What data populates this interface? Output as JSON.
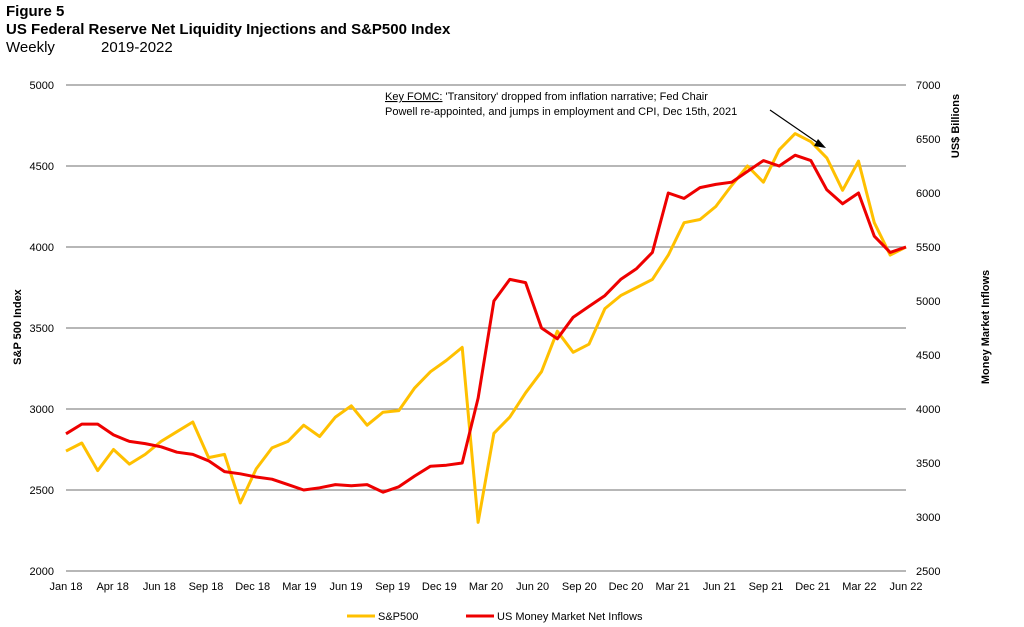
{
  "header": {
    "figure_label": "Figure 5",
    "title": "US Federal Reserve Net Liquidity Injections and S&P500 Index",
    "frequency": "Weekly",
    "period": "2019-2022"
  },
  "chart_data": {
    "type": "line",
    "y_left": {
      "label": "S&P 500 Index",
      "range": [
        2000,
        5000
      ],
      "ticks": [
        2000,
        2500,
        3000,
        3500,
        4000,
        4500,
        5000
      ]
    },
    "y_right": {
      "label": "Money Market Inflows",
      "unit_label": "US$ Billions",
      "range": [
        2500,
        7000
      ],
      "ticks": [
        2500,
        3000,
        3500,
        4000,
        4500,
        5000,
        5500,
        6000,
        6500,
        7000
      ]
    },
    "x_ticks": [
      "Jan 18",
      "Apr 18",
      "Jun 18",
      "Sep 18",
      "Dec 18",
      "Mar 19",
      "Jun 19",
      "Sep 19",
      "Dec 19",
      "Mar 20",
      "Jun 20",
      "Sep 20",
      "Dec 20",
      "Mar 21",
      "Jun 21",
      "Sep 21",
      "Dec 21",
      "Mar 22",
      "Jun 22"
    ],
    "grid": "horizontal",
    "legend_position": "bottom",
    "annotation": {
      "prefix": "Key FOMC:",
      "line1": " 'Transitory' dropped from inflation narrative; Fed Chair",
      "line2": "Powell re-appointed, and jumps in employment and CPI, Dec 15th, 2021"
    },
    "series": [
      {
        "name": "S&P500",
        "color": "#FFC000",
        "axis": "left",
        "x": [
          "Jan 18",
          "Feb 18",
          "Mar 18",
          "Apr 18",
          "May 18",
          "Jun 18",
          "Jul 18",
          "Aug 18",
          "Sep 18",
          "Oct 18",
          "Nov 18",
          "Dec 18",
          "Jan 19",
          "Feb 19",
          "Mar 19",
          "Apr 19",
          "May 19",
          "Jun 19",
          "Jul 19",
          "Aug 19",
          "Sep 19",
          "Oct 19",
          "Nov 19",
          "Dec 19",
          "Jan 20",
          "Feb 20",
          "Mar 20",
          "Apr 20",
          "May 20",
          "Jun 20",
          "Jul 20",
          "Aug 20",
          "Sep 20",
          "Oct 20",
          "Nov 20",
          "Dec 20",
          "Jan 21",
          "Feb 21",
          "Mar 21",
          "Apr 21",
          "May 21",
          "Jun 21",
          "Jul 21",
          "Aug 21",
          "Sep 21",
          "Oct 21",
          "Nov 21",
          "Dec 21",
          "Jan 22",
          "Feb 22",
          "Mar 22",
          "Apr 22",
          "May 22",
          "Jun 22"
        ],
        "values": [
          2740,
          2790,
          2620,
          2750,
          2660,
          2720,
          2800,
          2860,
          2920,
          2700,
          2720,
          2420,
          2630,
          2760,
          2800,
          2900,
          2830,
          2950,
          3020,
          2900,
          2980,
          2990,
          3130,
          3230,
          3300,
          3380,
          2300,
          2850,
          2950,
          3100,
          3230,
          3480,
          3350,
          3400,
          3620,
          3700,
          3750,
          3800,
          3950,
          4150,
          4170,
          4250,
          4380,
          4500,
          4400,
          4600,
          4700,
          4650,
          4550,
          4350,
          4530,
          4150,
          3950,
          4000
        ]
      },
      {
        "name": "US Money Market Net Inflows",
        "color": "#EE0000",
        "axis": "right",
        "x": [
          "Jan 18",
          "Feb 18",
          "Mar 18",
          "Apr 18",
          "May 18",
          "Jun 18",
          "Jul 18",
          "Aug 18",
          "Sep 18",
          "Oct 18",
          "Nov 18",
          "Dec 18",
          "Jan 19",
          "Feb 19",
          "Mar 19",
          "Apr 19",
          "May 19",
          "Jun 19",
          "Jul 19",
          "Aug 19",
          "Sep 19",
          "Oct 19",
          "Nov 19",
          "Dec 19",
          "Jan 20",
          "Feb 20",
          "Mar 20",
          "Apr 20",
          "May 20",
          "Jun 20",
          "Jul 20",
          "Aug 20",
          "Sep 20",
          "Oct 20",
          "Nov 20",
          "Dec 20",
          "Jan 21",
          "Feb 21",
          "Mar 21",
          "Apr 21",
          "May 21",
          "Jun 21",
          "Jul 21",
          "Aug 21",
          "Sep 21",
          "Oct 21",
          "Nov 21",
          "Dec 21",
          "Jan 22",
          "Feb 22",
          "Mar 22",
          "Apr 22",
          "May 22",
          "Jun 22"
        ],
        "values": [
          3770,
          3860,
          3860,
          3760,
          3700,
          3680,
          3650,
          3600,
          3580,
          3520,
          3420,
          3400,
          3370,
          3350,
          3300,
          3250,
          3270,
          3300,
          3290,
          3300,
          3230,
          3280,
          3380,
          3470,
          3480,
          3500,
          4100,
          5000,
          5200,
          5170,
          4750,
          4650,
          4850,
          4950,
          5050,
          5200,
          5300,
          5450,
          6000,
          5950,
          6050,
          6080,
          6100,
          6200,
          6300,
          6250,
          6350,
          6300,
          6030,
          5900,
          6000,
          5600,
          5450,
          5500
        ]
      }
    ]
  }
}
